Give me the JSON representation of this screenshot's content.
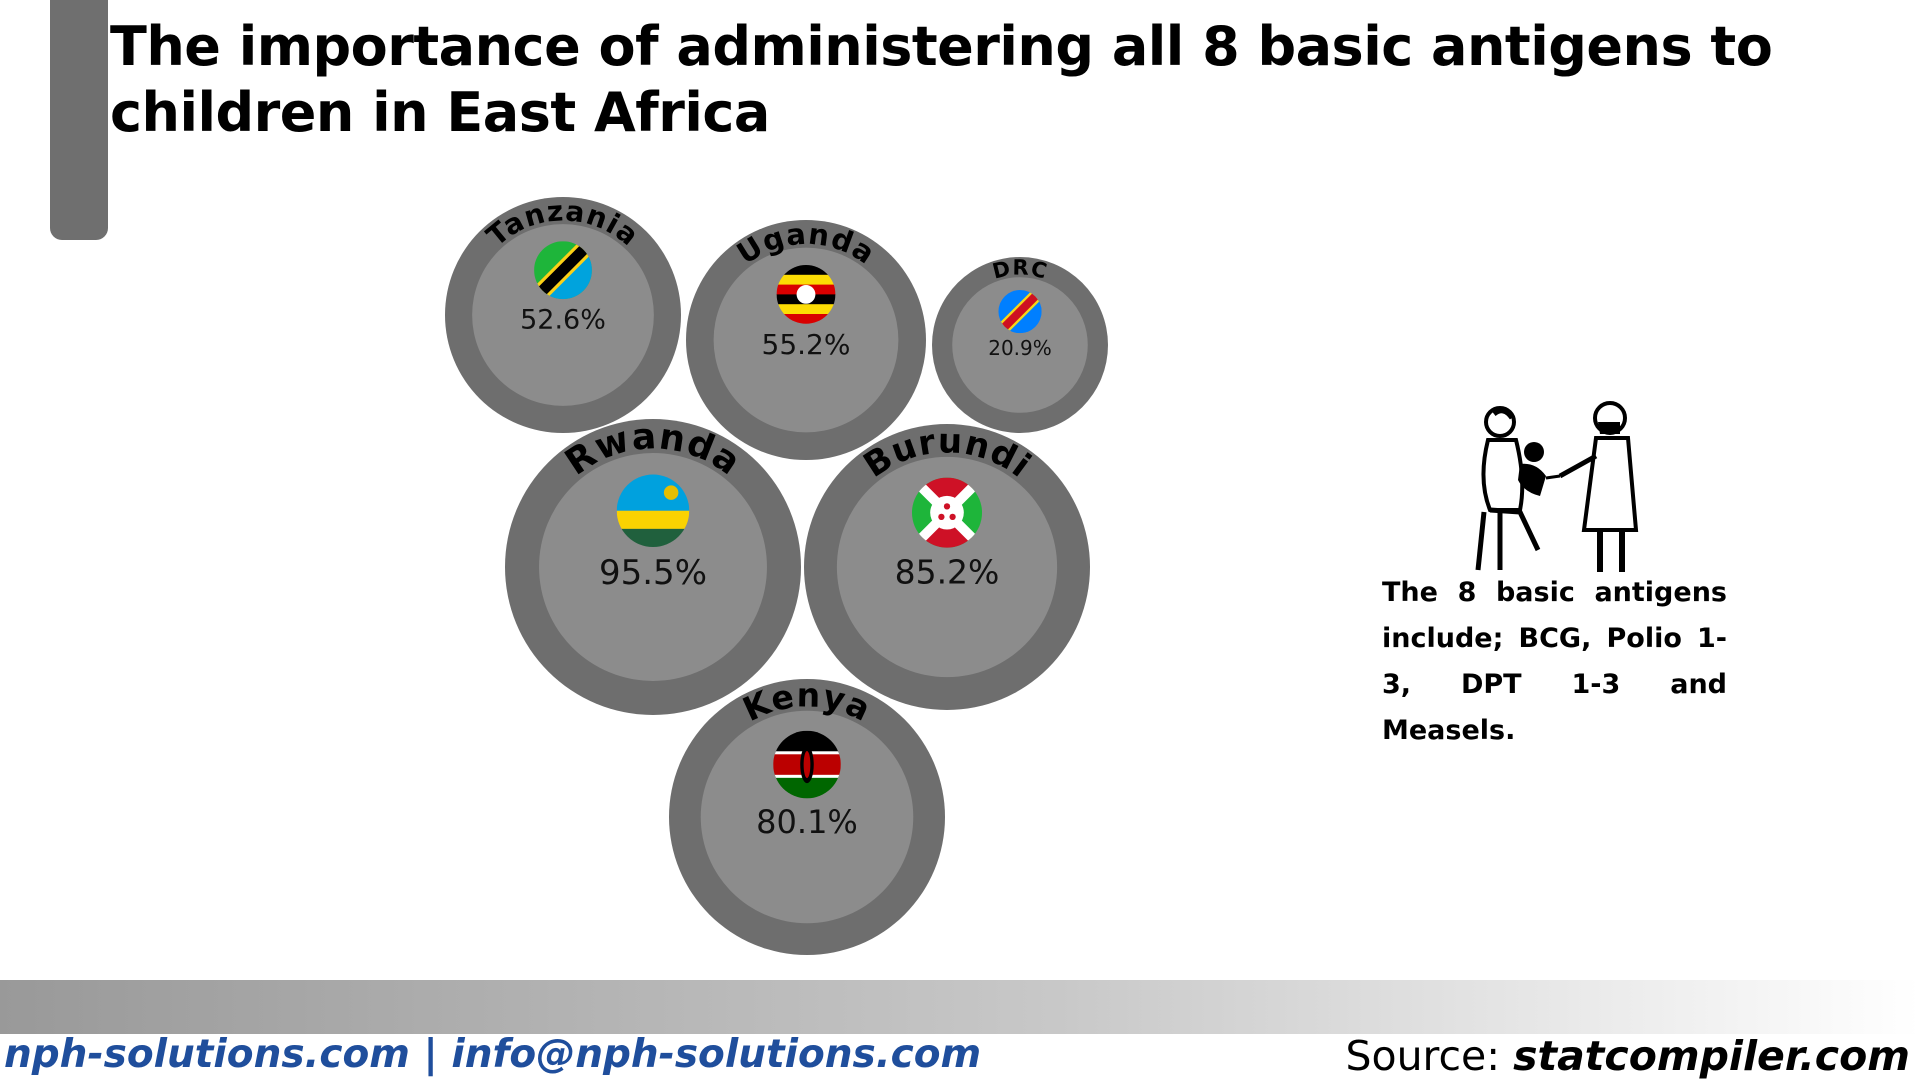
{
  "title": "The importance of administering all 8 basic antigens to children in East Africa",
  "chart_data": {
    "type": "bubble",
    "unit": "%",
    "points": [
      {
        "country": "Tanzania",
        "value": 52.6,
        "label": "52.6%"
      },
      {
        "country": "Uganda",
        "value": 55.2,
        "label": "55.2%"
      },
      {
        "country": "DRC",
        "value": 20.9,
        "label": "20.9%"
      },
      {
        "country": "Rwanda",
        "value": 95.5,
        "label": "95.5%"
      },
      {
        "country": "Burundi",
        "value": 85.2,
        "label": "85.2%"
      },
      {
        "country": "Kenya",
        "value": 80.1,
        "label": "80.1%"
      }
    ]
  },
  "colors": {
    "bubble_outer": "#6e6e6e",
    "bubble_inner": "#8c8c8c",
    "footer_link": "#1f4e9c"
  },
  "note": "The 8 basic antigens include; BCG, Polio 1-3, DPT 1-3 and Measels.",
  "icons": {
    "illustration": "vaccination-icon"
  },
  "footer": {
    "left": "nph-solutions.com | info@nph-solutions.com",
    "source_prefix": "Source: ",
    "source_site": "statcompiler.com"
  }
}
